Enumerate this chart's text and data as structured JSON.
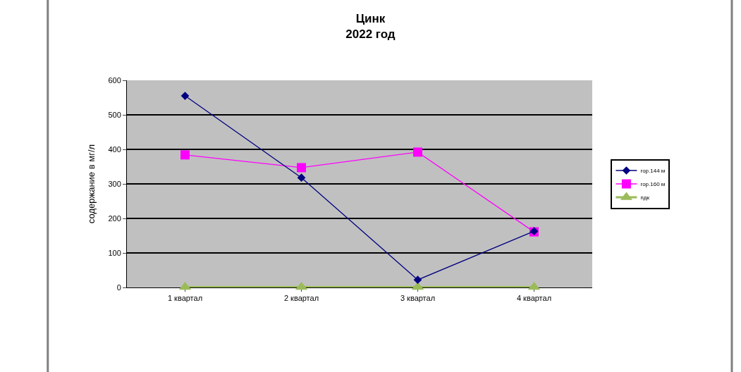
{
  "chart_data": {
    "type": "line",
    "title": "Цинк\n2022 год",
    "ylabel": "содержание в мг/л",
    "categories": [
      "1 квартал",
      "2 квартал",
      "3 квартал",
      "4 квартал"
    ],
    "series": [
      {
        "name": "гор.144 м",
        "color": "#000080",
        "marker": "diamond",
        "values": [
          555,
          318,
          22,
          163
        ]
      },
      {
        "name": "гор.160 м",
        "color": "#ff00ff",
        "marker": "square",
        "values": [
          384,
          347,
          392,
          161
        ]
      },
      {
        "name": "пдк",
        "color": "#9bbb59",
        "marker": "triangle",
        "values": [
          1,
          1,
          1,
          1
        ]
      }
    ],
    "ylim": [
      0,
      600
    ],
    "yticks": [
      0,
      100,
      200,
      300,
      400,
      500,
      600
    ],
    "grid": "y",
    "legend": "right"
  }
}
